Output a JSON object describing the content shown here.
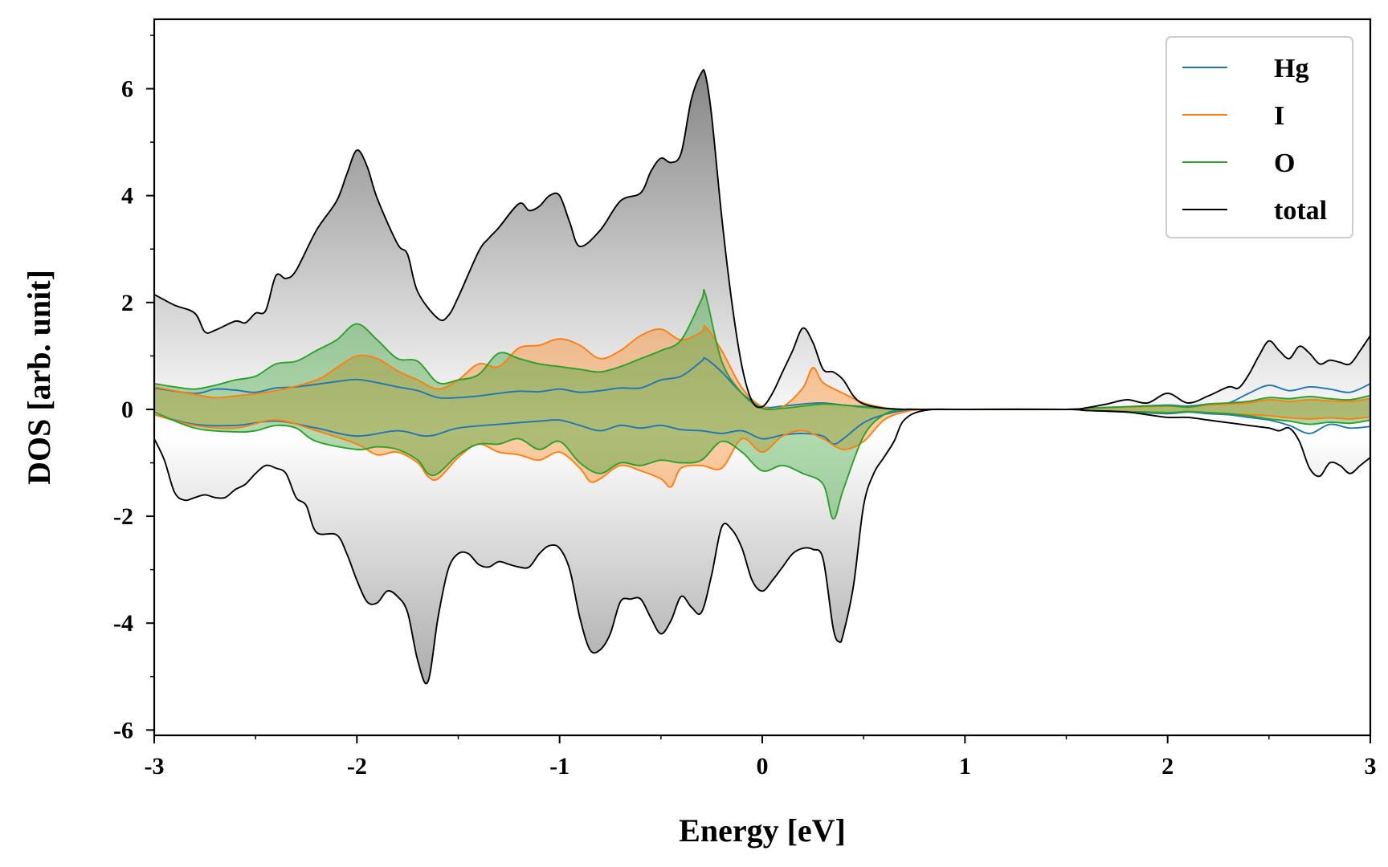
{
  "chart_data": {
    "type": "area",
    "title": "",
    "xlabel": "Energy [eV]",
    "ylabel": "DOS [arb. unit]",
    "xlim": [
      -3,
      3
    ],
    "ylim": [
      -6.1,
      7.3
    ],
    "x_ticks": [
      -3,
      -2,
      -1,
      0,
      1,
      2,
      3
    ],
    "x_tick_labels": [
      "-3",
      "-2",
      "-1",
      "0",
      "1",
      "2",
      "3"
    ],
    "y_ticks": [
      -6,
      -4,
      -2,
      0,
      2,
      4,
      6
    ],
    "y_tick_labels": [
      "-6",
      "-4",
      "-2",
      "0",
      "2",
      "4",
      "6"
    ],
    "grid": false,
    "legend_position": "top-right",
    "series": [
      {
        "name": "Hg",
        "color": "#1f77b4",
        "fill": false,
        "up_x": [
          -3.0,
          -2.8,
          -2.7,
          -2.6,
          -2.5,
          -2.4,
          -2.3,
          -2.1,
          -2.0,
          -1.9,
          -1.8,
          -1.7,
          -1.6,
          -1.5,
          -1.4,
          -1.3,
          -1.2,
          -1.1,
          -1.0,
          -0.9,
          -0.8,
          -0.7,
          -0.6,
          -0.5,
          -0.4,
          -0.3,
          -0.28,
          -0.2,
          -0.1,
          0.0,
          0.1,
          0.2,
          0.3,
          0.4,
          0.5,
          0.6,
          0.7,
          0.8,
          1.0,
          1.5,
          1.6,
          1.8,
          2.0,
          2.1,
          2.2,
          2.3,
          2.4,
          2.5,
          2.6,
          2.7,
          2.8,
          2.9,
          3.0
        ],
        "up_y": [
          0.4,
          0.3,
          0.38,
          0.36,
          0.32,
          0.4,
          0.42,
          0.52,
          0.56,
          0.5,
          0.42,
          0.35,
          0.22,
          0.22,
          0.25,
          0.3,
          0.34,
          0.33,
          0.38,
          0.32,
          0.35,
          0.4,
          0.4,
          0.55,
          0.62,
          0.9,
          0.95,
          0.7,
          0.3,
          0.05,
          0.06,
          0.1,
          0.12,
          0.08,
          0.05,
          0.02,
          0.0,
          0.0,
          0.0,
          0.0,
          0.02,
          0.05,
          0.08,
          0.06,
          0.1,
          0.12,
          0.3,
          0.45,
          0.35,
          0.42,
          0.38,
          0.32,
          0.48
        ],
        "down_x": [
          -3.0,
          -2.8,
          -2.6,
          -2.4,
          -2.2,
          -2.0,
          -1.8,
          -1.65,
          -1.5,
          -1.3,
          -1.1,
          -1.0,
          -0.9,
          -0.8,
          -0.7,
          -0.6,
          -0.5,
          -0.4,
          -0.3,
          -0.2,
          -0.1,
          0.0,
          0.1,
          0.2,
          0.3,
          0.35,
          0.4,
          0.5,
          0.6,
          0.7,
          0.8,
          1.0,
          1.5,
          1.6,
          1.8,
          2.0,
          2.1,
          2.2,
          2.3,
          2.4,
          2.5,
          2.6,
          2.7,
          2.8,
          2.9,
          3.0
        ],
        "down_y": [
          -0.1,
          -0.28,
          -0.3,
          -0.22,
          -0.35,
          -0.5,
          -0.4,
          -0.5,
          -0.35,
          -0.28,
          -0.22,
          -0.2,
          -0.3,
          -0.4,
          -0.3,
          -0.35,
          -0.3,
          -0.38,
          -0.4,
          -0.45,
          -0.4,
          -0.55,
          -0.48,
          -0.45,
          -0.5,
          -0.65,
          -0.55,
          -0.25,
          -0.1,
          -0.02,
          0.0,
          0.0,
          0.0,
          -0.02,
          -0.05,
          -0.08,
          -0.05,
          -0.08,
          -0.1,
          -0.15,
          -0.2,
          -0.3,
          -0.45,
          -0.28,
          -0.35,
          -0.32
        ]
      },
      {
        "name": "I",
        "color": "#ff7f0e",
        "fill": true,
        "up_x": [
          -3.0,
          -2.8,
          -2.7,
          -2.6,
          -2.4,
          -2.2,
          -2.1,
          -2.0,
          -1.9,
          -1.8,
          -1.7,
          -1.6,
          -1.5,
          -1.4,
          -1.3,
          -1.2,
          -1.1,
          -1.0,
          -0.9,
          -0.8,
          -0.7,
          -0.6,
          -0.5,
          -0.4,
          -0.3,
          -0.28,
          -0.2,
          -0.1,
          0.0,
          0.1,
          0.2,
          0.25,
          0.3,
          0.4,
          0.5,
          0.6,
          0.7,
          0.8,
          1.0,
          1.5,
          1.6,
          1.8,
          2.0,
          2.1,
          2.2,
          2.3,
          2.4,
          2.5,
          2.6,
          2.7,
          2.8,
          2.9,
          3.0
        ],
        "up_y": [
          0.42,
          0.28,
          0.22,
          0.25,
          0.35,
          0.55,
          0.78,
          1.0,
          0.95,
          0.72,
          0.55,
          0.38,
          0.55,
          0.85,
          0.8,
          1.15,
          1.2,
          1.32,
          1.2,
          0.95,
          1.1,
          1.38,
          1.5,
          1.3,
          1.45,
          1.55,
          1.1,
          0.4,
          0.05,
          0.05,
          0.4,
          0.78,
          0.5,
          0.3,
          0.12,
          0.03,
          0.0,
          0.0,
          0.0,
          0.0,
          0.02,
          0.04,
          0.06,
          0.04,
          0.08,
          0.1,
          0.12,
          0.18,
          0.15,
          0.18,
          0.16,
          0.15,
          0.2
        ],
        "down_x": [
          -3.0,
          -2.8,
          -2.6,
          -2.4,
          -2.2,
          -2.0,
          -1.9,
          -1.8,
          -1.7,
          -1.65,
          -1.6,
          -1.5,
          -1.4,
          -1.3,
          -1.2,
          -1.1,
          -1.0,
          -0.9,
          -0.85,
          -0.8,
          -0.7,
          -0.6,
          -0.5,
          -0.45,
          -0.4,
          -0.3,
          -0.2,
          -0.1,
          0.0,
          0.1,
          0.2,
          0.3,
          0.4,
          0.5,
          0.6,
          0.7,
          0.8,
          1.0,
          1.5,
          1.6,
          1.8,
          2.0,
          2.1,
          2.2,
          2.3,
          2.4,
          2.5,
          2.6,
          2.7,
          2.8,
          2.9,
          3.0
        ],
        "down_y": [
          -0.1,
          -0.3,
          -0.35,
          -0.2,
          -0.4,
          -0.65,
          -0.85,
          -0.8,
          -1.0,
          -1.25,
          -1.3,
          -0.9,
          -0.65,
          -0.8,
          -0.85,
          -0.95,
          -0.8,
          -1.1,
          -1.35,
          -1.3,
          -1.05,
          -1.15,
          -1.3,
          -1.45,
          -1.1,
          -1.05,
          -1.1,
          -0.55,
          -0.8,
          -0.5,
          -0.4,
          -0.55,
          -0.75,
          -0.6,
          -0.2,
          -0.05,
          0.0,
          0.0,
          0.0,
          -0.02,
          -0.04,
          -0.06,
          -0.04,
          -0.06,
          -0.08,
          -0.1,
          -0.12,
          -0.16,
          -0.18,
          -0.16,
          -0.18,
          -0.14
        ]
      },
      {
        "name": "O",
        "color": "#2ca02c",
        "fill": true,
        "up_x": [
          -3.0,
          -2.9,
          -2.8,
          -2.7,
          -2.6,
          -2.5,
          -2.4,
          -2.3,
          -2.2,
          -2.1,
          -2.0,
          -1.9,
          -1.8,
          -1.7,
          -1.6,
          -1.5,
          -1.4,
          -1.3,
          -1.2,
          -1.1,
          -1.0,
          -0.9,
          -0.8,
          -0.7,
          -0.6,
          -0.5,
          -0.4,
          -0.3,
          -0.28,
          -0.2,
          -0.1,
          0.0,
          0.1,
          0.2,
          0.3,
          0.4,
          0.5,
          0.6,
          0.7,
          0.8,
          1.0,
          1.5,
          1.6,
          1.8,
          2.0,
          2.1,
          2.2,
          2.3,
          2.4,
          2.5,
          2.6,
          2.7,
          2.8,
          2.9,
          3.0
        ],
        "up_y": [
          0.48,
          0.42,
          0.38,
          0.45,
          0.55,
          0.62,
          0.85,
          0.9,
          1.1,
          1.3,
          1.6,
          1.3,
          0.95,
          0.9,
          0.5,
          0.55,
          0.65,
          1.05,
          0.95,
          0.85,
          0.8,
          0.75,
          0.7,
          0.8,
          0.95,
          1.1,
          1.3,
          2.05,
          2.15,
          0.9,
          0.3,
          0.02,
          0.02,
          0.06,
          0.1,
          0.08,
          0.04,
          0.02,
          0.0,
          0.0,
          0.0,
          0.0,
          0.02,
          0.05,
          0.07,
          0.04,
          0.1,
          0.12,
          0.15,
          0.22,
          0.2,
          0.24,
          0.2,
          0.18,
          0.26
        ],
        "down_x": [
          -3.0,
          -2.8,
          -2.6,
          -2.5,
          -2.4,
          -2.3,
          -2.2,
          -2.0,
          -1.9,
          -1.8,
          -1.7,
          -1.65,
          -1.6,
          -1.5,
          -1.4,
          -1.3,
          -1.2,
          -1.1,
          -1.0,
          -0.9,
          -0.8,
          -0.7,
          -0.6,
          -0.5,
          -0.4,
          -0.3,
          -0.2,
          -0.1,
          0.0,
          0.1,
          0.2,
          0.3,
          0.35,
          0.4,
          0.5,
          0.6,
          0.7,
          0.8,
          1.0,
          1.5,
          1.6,
          1.8,
          2.0,
          2.1,
          2.2,
          2.3,
          2.4,
          2.5,
          2.6,
          2.7,
          2.8,
          2.9,
          3.0
        ],
        "down_y": [
          -0.05,
          -0.35,
          -0.42,
          -0.4,
          -0.3,
          -0.35,
          -0.6,
          -0.75,
          -0.7,
          -0.75,
          -0.95,
          -1.2,
          -1.2,
          -0.85,
          -0.65,
          -0.65,
          -0.55,
          -0.75,
          -0.6,
          -1.0,
          -1.2,
          -1.0,
          -1.05,
          -0.95,
          -1.0,
          -0.95,
          -0.6,
          -0.8,
          -1.15,
          -1.05,
          -1.2,
          -1.4,
          -2.05,
          -1.5,
          -0.5,
          -0.1,
          0.0,
          0.0,
          0.0,
          0.0,
          -0.02,
          -0.04,
          -0.06,
          -0.04,
          -0.06,
          -0.08,
          -0.12,
          -0.18,
          -0.22,
          -0.28,
          -0.24,
          -0.26,
          -0.2
        ]
      },
      {
        "name": "total",
        "color": "#000000",
        "fill": true,
        "fill_style": "gradient",
        "up_x": [
          -3.0,
          -2.9,
          -2.8,
          -2.75,
          -2.7,
          -2.6,
          -2.55,
          -2.5,
          -2.45,
          -2.4,
          -2.35,
          -2.3,
          -2.2,
          -2.1,
          -2.05,
          -2.0,
          -1.95,
          -1.9,
          -1.8,
          -1.75,
          -1.7,
          -1.6,
          -1.55,
          -1.5,
          -1.4,
          -1.35,
          -1.3,
          -1.2,
          -1.15,
          -1.1,
          -1.05,
          -1.0,
          -0.95,
          -0.9,
          -0.8,
          -0.7,
          -0.6,
          -0.55,
          -0.5,
          -0.45,
          -0.4,
          -0.35,
          -0.3,
          -0.28,
          -0.25,
          -0.2,
          -0.15,
          -0.1,
          -0.05,
          0.0,
          0.05,
          0.1,
          0.15,
          0.2,
          0.25,
          0.3,
          0.35,
          0.4,
          0.45,
          0.5,
          0.6,
          0.7,
          0.8,
          1.0,
          1.5,
          1.6,
          1.7,
          1.8,
          1.9,
          2.0,
          2.1,
          2.2,
          2.3,
          2.35,
          2.4,
          2.45,
          2.5,
          2.55,
          2.6,
          2.65,
          2.7,
          2.75,
          2.8,
          2.85,
          2.9,
          2.95,
          3.0
        ],
        "up_y": [
          2.15,
          1.95,
          1.8,
          1.45,
          1.48,
          1.65,
          1.62,
          1.8,
          1.85,
          2.5,
          2.45,
          2.6,
          3.35,
          3.9,
          4.4,
          4.85,
          4.55,
          3.95,
          3.1,
          2.9,
          2.2,
          1.7,
          1.75,
          2.1,
          2.95,
          3.2,
          3.4,
          3.85,
          3.72,
          3.8,
          4.0,
          4.0,
          3.5,
          3.05,
          3.35,
          3.9,
          4.05,
          4.45,
          4.7,
          4.62,
          4.8,
          5.8,
          6.3,
          6.25,
          5.5,
          3.6,
          2.0,
          0.8,
          0.15,
          0.05,
          0.3,
          0.7,
          1.1,
          1.52,
          1.25,
          0.75,
          0.7,
          0.55,
          0.25,
          0.1,
          0.02,
          0.0,
          0.0,
          0.0,
          0.0,
          0.03,
          0.1,
          0.18,
          0.12,
          0.3,
          0.12,
          0.25,
          0.42,
          0.4,
          0.65,
          1.0,
          1.28,
          1.1,
          0.95,
          1.18,
          1.05,
          0.85,
          0.92,
          0.88,
          0.85,
          1.1,
          1.38
        ],
        "down_x": [
          -3.0,
          -2.95,
          -2.9,
          -2.85,
          -2.8,
          -2.75,
          -2.7,
          -2.65,
          -2.6,
          -2.55,
          -2.5,
          -2.45,
          -2.4,
          -2.35,
          -2.3,
          -2.25,
          -2.2,
          -2.1,
          -2.05,
          -2.0,
          -1.95,
          -1.9,
          -1.85,
          -1.8,
          -1.75,
          -1.7,
          -1.65,
          -1.6,
          -1.55,
          -1.5,
          -1.45,
          -1.4,
          -1.35,
          -1.3,
          -1.25,
          -1.2,
          -1.15,
          -1.1,
          -1.05,
          -1.0,
          -0.95,
          -0.9,
          -0.85,
          -0.8,
          -0.75,
          -0.7,
          -0.65,
          -0.6,
          -0.55,
          -0.5,
          -0.45,
          -0.4,
          -0.35,
          -0.3,
          -0.25,
          -0.2,
          -0.15,
          -0.1,
          -0.05,
          0.0,
          0.05,
          0.1,
          0.15,
          0.2,
          0.25,
          0.3,
          0.35,
          0.38,
          0.4,
          0.45,
          0.5,
          0.55,
          0.6,
          0.65,
          0.7,
          0.8,
          1.0,
          1.5,
          1.6,
          1.8,
          1.9,
          2.0,
          2.1,
          2.2,
          2.3,
          2.4,
          2.5,
          2.55,
          2.6,
          2.65,
          2.7,
          2.75,
          2.8,
          2.85,
          2.9,
          2.95,
          3.0
        ],
        "down_y": [
          -0.55,
          -0.95,
          -1.55,
          -1.7,
          -1.65,
          -1.6,
          -1.65,
          -1.65,
          -1.5,
          -1.4,
          -1.2,
          -1.05,
          -1.1,
          -1.2,
          -1.65,
          -1.8,
          -2.3,
          -2.35,
          -2.7,
          -3.2,
          -3.6,
          -3.62,
          -3.4,
          -3.5,
          -3.8,
          -4.7,
          -5.1,
          -3.9,
          -3.0,
          -2.7,
          -2.7,
          -2.9,
          -2.95,
          -2.85,
          -2.9,
          -2.95,
          -2.95,
          -2.7,
          -2.55,
          -2.6,
          -3.0,
          -3.9,
          -4.5,
          -4.5,
          -4.2,
          -3.6,
          -3.55,
          -3.55,
          -3.9,
          -4.2,
          -3.95,
          -3.5,
          -3.7,
          -3.8,
          -3.1,
          -2.2,
          -2.25,
          -2.6,
          -3.2,
          -3.4,
          -3.2,
          -2.95,
          -2.7,
          -2.6,
          -2.62,
          -2.8,
          -4.1,
          -4.35,
          -4.2,
          -3.3,
          -1.8,
          -1.2,
          -0.9,
          -0.6,
          -0.2,
          -0.02,
          0.0,
          0.0,
          -0.02,
          -0.05,
          -0.1,
          -0.15,
          -0.15,
          -0.2,
          -0.25,
          -0.3,
          -0.35,
          -0.4,
          -0.35,
          -0.6,
          -1.1,
          -1.25,
          -1.0,
          -1.05,
          -1.2,
          -1.05,
          -0.9
        ]
      }
    ]
  }
}
